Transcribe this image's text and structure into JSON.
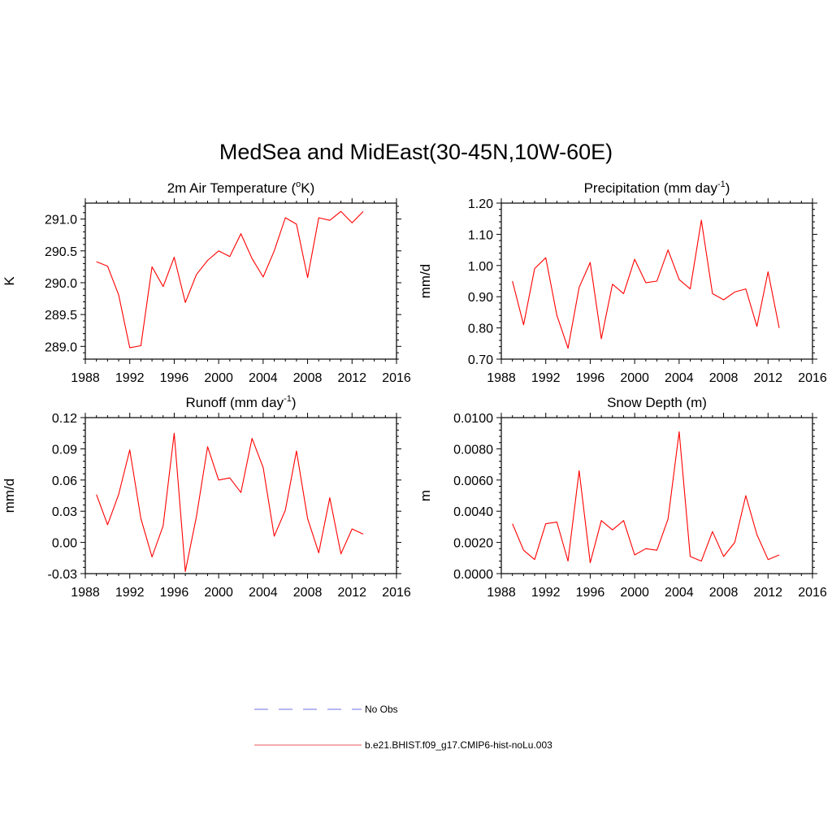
{
  "title": "MedSea and MidEast(30-45N,10W-60E)",
  "legend": {
    "entries": [
      {
        "label": "No Obs",
        "color": "#9f9fef",
        "dash": true
      },
      {
        "label": "b.e21.BHIST.f09_g17.CMIP6-hist-noLu.003",
        "color": "#f09090",
        "dash": false
      }
    ]
  },
  "line_color": "#ff0000",
  "chart_data": [
    {
      "type": "line",
      "title_main": "2m Air Temperature (",
      "title_sup": "o",
      "title_end": "K)",
      "ylabel": "K",
      "xlim": [
        1988,
        2016
      ],
      "ylim": [
        288.8,
        291.25
      ],
      "xticks": [
        1988,
        1992,
        1996,
        2000,
        2004,
        2008,
        2012,
        2016
      ],
      "yticks": [
        289.0,
        289.5,
        290.0,
        290.5,
        291.0
      ],
      "ytick_labels": [
        "289.0",
        "289.5",
        "290.0",
        "290.5",
        "291.0"
      ],
      "series": [
        {
          "x": [
            1989,
            1990,
            1991,
            1992,
            1993,
            1994,
            1995,
            1996,
            1997,
            1998,
            1999,
            2000,
            2001,
            2002,
            2003,
            2004,
            2005,
            2006,
            2007,
            2008,
            2009,
            2010,
            2011,
            2012,
            2013
          ],
          "values": [
            290.33,
            290.26,
            289.81,
            288.98,
            289.01,
            290.25,
            289.94,
            290.4,
            289.69,
            290.13,
            290.35,
            290.5,
            290.41,
            290.77,
            290.38,
            290.09,
            290.5,
            291.02,
            290.92,
            290.08,
            291.02,
            290.98,
            291.12,
            290.94,
            291.12
          ]
        }
      ]
    },
    {
      "type": "line",
      "title_main": "Precipitation (mm day",
      "title_sup": "-1",
      "title_end": ")",
      "ylabel": "mm/d",
      "xlim": [
        1988,
        2016
      ],
      "ylim": [
        0.7,
        1.2
      ],
      "xticks": [
        1988,
        1992,
        1996,
        2000,
        2004,
        2008,
        2012,
        2016
      ],
      "yticks": [
        0.7,
        0.8,
        0.9,
        1.0,
        1.1,
        1.2
      ],
      "ytick_labels": [
        "0.70",
        "0.80",
        "0.90",
        "1.00",
        "1.10",
        "1.20"
      ],
      "series": [
        {
          "x": [
            1989,
            1990,
            1991,
            1992,
            1993,
            1994,
            1995,
            1996,
            1997,
            1998,
            1999,
            2000,
            2001,
            2002,
            2003,
            2004,
            2005,
            2006,
            2007,
            2008,
            2009,
            2010,
            2011,
            2012,
            2013
          ],
          "values": [
            0.95,
            0.81,
            0.99,
            1.025,
            0.84,
            0.735,
            0.93,
            1.01,
            0.765,
            0.94,
            0.91,
            1.02,
            0.945,
            0.95,
            1.05,
            0.955,
            0.925,
            1.145,
            0.91,
            0.89,
            0.915,
            0.925,
            0.805,
            0.98,
            0.8
          ]
        }
      ]
    },
    {
      "type": "line",
      "title_main": "Runoff (mm day",
      "title_sup": "-1",
      "title_end": ")",
      "ylabel": "mm/d",
      "xlim": [
        1988,
        2016
      ],
      "ylim": [
        -0.03,
        0.12
      ],
      "xticks": [
        1988,
        1992,
        1996,
        2000,
        2004,
        2008,
        2012,
        2016
      ],
      "yticks": [
        -0.03,
        0.0,
        0.03,
        0.06,
        0.09,
        0.12
      ],
      "ytick_labels": [
        "-0.03",
        "0.00",
        "0.03",
        "0.06",
        "0.09",
        "0.12"
      ],
      "series": [
        {
          "x": [
            1989,
            1990,
            1991,
            1992,
            1993,
            1994,
            1995,
            1996,
            1997,
            1998,
            1999,
            2000,
            2001,
            2002,
            2003,
            2004,
            2005,
            2006,
            2007,
            2008,
            2009,
            2010,
            2011,
            2012,
            2013
          ],
          "values": [
            0.046,
            0.017,
            0.046,
            0.089,
            0.023,
            -0.014,
            0.016,
            0.105,
            -0.028,
            0.025,
            0.092,
            0.06,
            0.062,
            0.048,
            0.1,
            0.072,
            0.006,
            0.031,
            0.088,
            0.023,
            -0.01,
            0.043,
            -0.011,
            0.013,
            0.008
          ]
        }
      ]
    },
    {
      "type": "line",
      "title_main": "Snow Depth (m)",
      "title_sup": "",
      "title_end": "",
      "ylabel": "m",
      "xlim": [
        1988,
        2016
      ],
      "ylim": [
        0.0,
        0.01
      ],
      "xticks": [
        1988,
        1992,
        1996,
        2000,
        2004,
        2008,
        2012,
        2016
      ],
      "yticks": [
        0.0,
        0.002,
        0.004,
        0.006,
        0.008,
        0.01
      ],
      "ytick_labels": [
        "0.0000",
        "0.0020",
        "0.0040",
        "0.0060",
        "0.0080",
        "0.0100"
      ],
      "series": [
        {
          "x": [
            1989,
            1990,
            1991,
            1992,
            1993,
            1994,
            1995,
            1996,
            1997,
            1998,
            1999,
            2000,
            2001,
            2002,
            2003,
            2004,
            2005,
            2006,
            2007,
            2008,
            2009,
            2010,
            2011,
            2012,
            2013
          ],
          "values": [
            0.0032,
            0.0015,
            0.0009,
            0.0032,
            0.0033,
            0.0008,
            0.0066,
            0.0007,
            0.0034,
            0.0028,
            0.0034,
            0.0012,
            0.0016,
            0.0015,
            0.0035,
            0.0091,
            0.0011,
            0.0008,
            0.0027,
            0.0011,
            0.002,
            0.005,
            0.0025,
            0.0009,
            0.0012
          ]
        }
      ]
    }
  ]
}
